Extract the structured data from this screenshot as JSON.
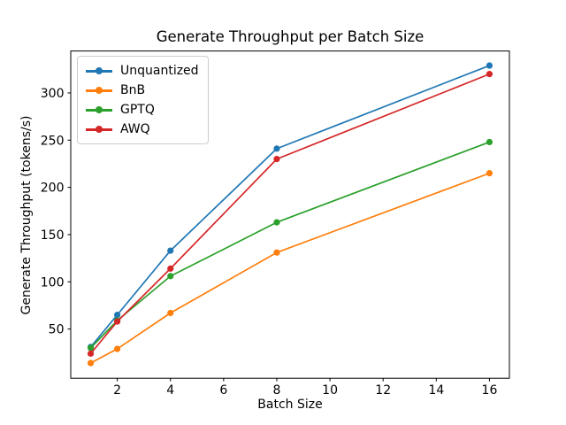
{
  "chart_data": {
    "type": "line",
    "title": "Generate Throughput per Batch Size",
    "xlabel": "Batch Size",
    "ylabel": "Generate Throughput (tokens/s)",
    "x": [
      1,
      2,
      4,
      8,
      16
    ],
    "series": [
      {
        "name": "Unquantized",
        "color": "#1f77b4",
        "values": [
          31,
          65,
          133,
          241,
          329
        ]
      },
      {
        "name": "BnB",
        "color": "#ff7f0e",
        "values": [
          14,
          29,
          67,
          131,
          215
        ]
      },
      {
        "name": "GPTQ",
        "color": "#2ca02c",
        "values": [
          30,
          59,
          106,
          163,
          248
        ]
      },
      {
        "name": "AWQ",
        "color": "#d62728",
        "values": [
          24,
          58,
          114,
          230,
          320
        ]
      }
    ],
    "xticks": [
      2,
      4,
      6,
      8,
      10,
      12,
      14,
      16
    ],
    "yticks": [
      50,
      100,
      150,
      200,
      250,
      300
    ],
    "xlim": [
      0.25,
      16.75
    ],
    "ylim": [
      -2.1,
      344.4
    ],
    "legend_position": "upper left",
    "grid": false,
    "marker": "circle",
    "background_color": "#ffffff",
    "axis_color": "#000000"
  }
}
